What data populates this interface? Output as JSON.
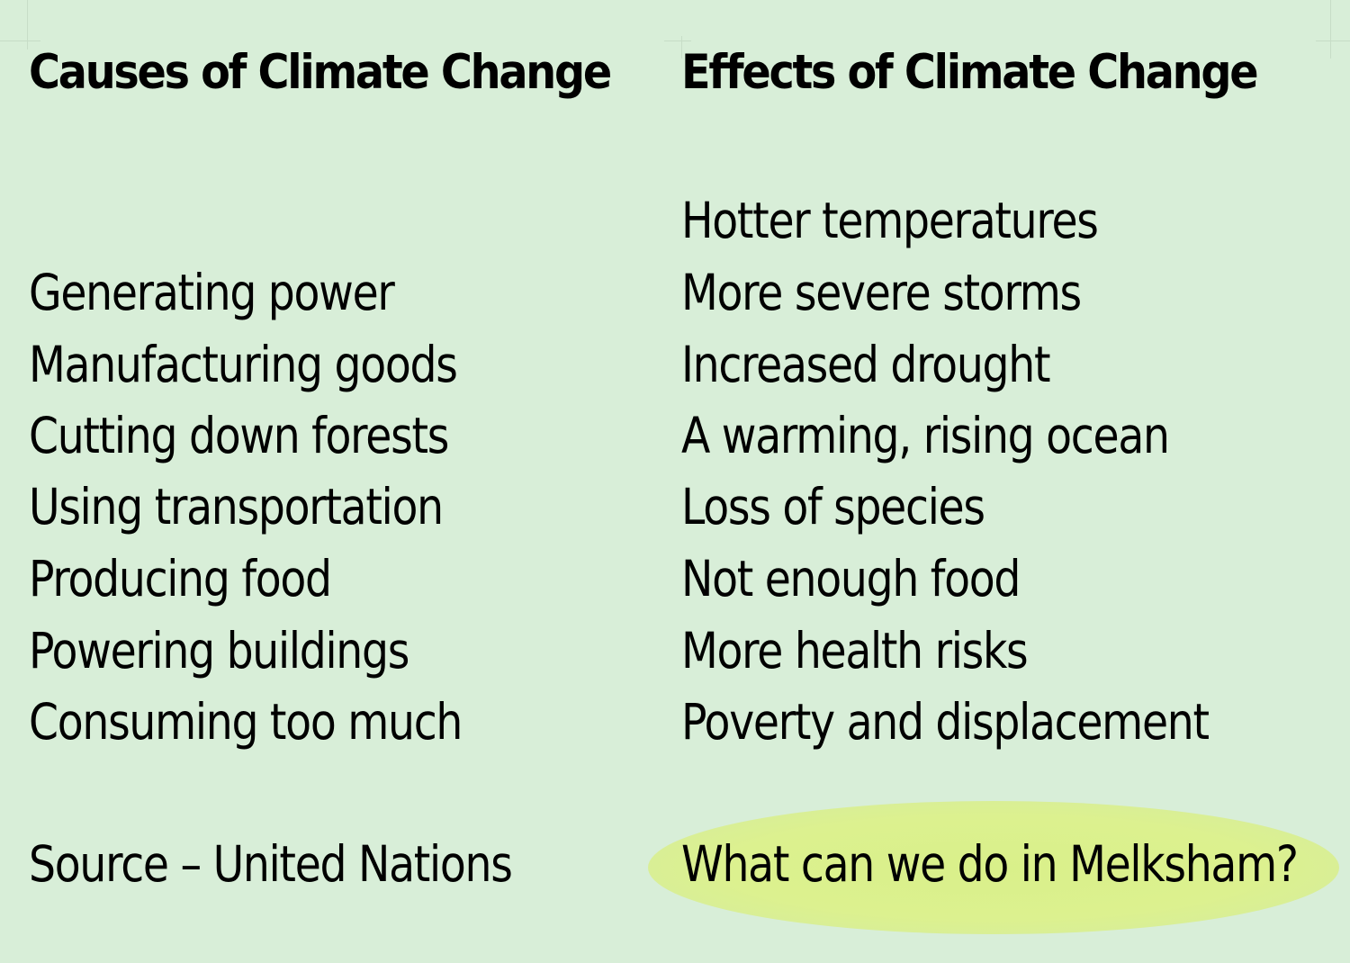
{
  "causes": {
    "heading": "Causes of Climate Change",
    "items": [
      "Generating power",
      "Manufacturing goods",
      "Cutting down forests",
      "Using transportation",
      "Producing food",
      "Powering buildings",
      "Consuming too much"
    ],
    "source": "Source – United Nations"
  },
  "effects": {
    "heading": "Effects of Climate Change",
    "items": [
      "Hotter temperatures",
      "More severe storms",
      "Increased drought",
      "A warming, rising ocean",
      "Loss of species",
      "Not enough food",
      "More health risks",
      "Poverty and displacement"
    ],
    "question": "What can we do in Melksham?"
  },
  "colors": {
    "background": "#d8eed8",
    "highlight": "#dcf18f",
    "text": "#000000"
  }
}
